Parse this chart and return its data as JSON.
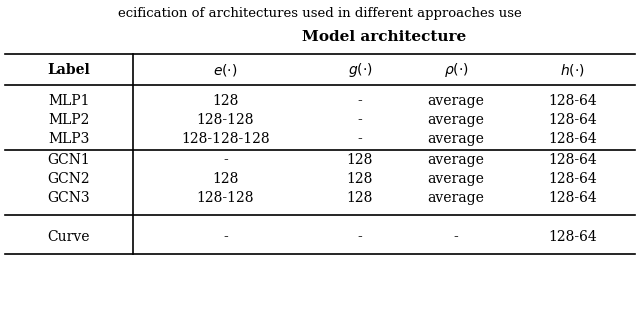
{
  "title_partial": "ecification of architectures used in different approaches use",
  "header_main": "Model architecture",
  "rows": [
    [
      "MLP1",
      "128",
      "-",
      "average",
      "128-64"
    ],
    [
      "MLP2",
      "128-128",
      "-",
      "average",
      "128-64"
    ],
    [
      "MLP3",
      "128-128-128",
      "-",
      "average",
      "128-64"
    ],
    [
      "GCN1",
      "-",
      "128",
      "average",
      "128-64"
    ],
    [
      "GCN2",
      "128",
      "128",
      "average",
      "128-64"
    ],
    [
      "GCN3",
      "128-128",
      "128",
      "average",
      "128-64"
    ],
    [
      "Curve",
      "-",
      "-",
      "-",
      "128-64"
    ]
  ],
  "figsize": [
    6.4,
    3.12
  ],
  "dpi": 100,
  "background": "#ffffff"
}
